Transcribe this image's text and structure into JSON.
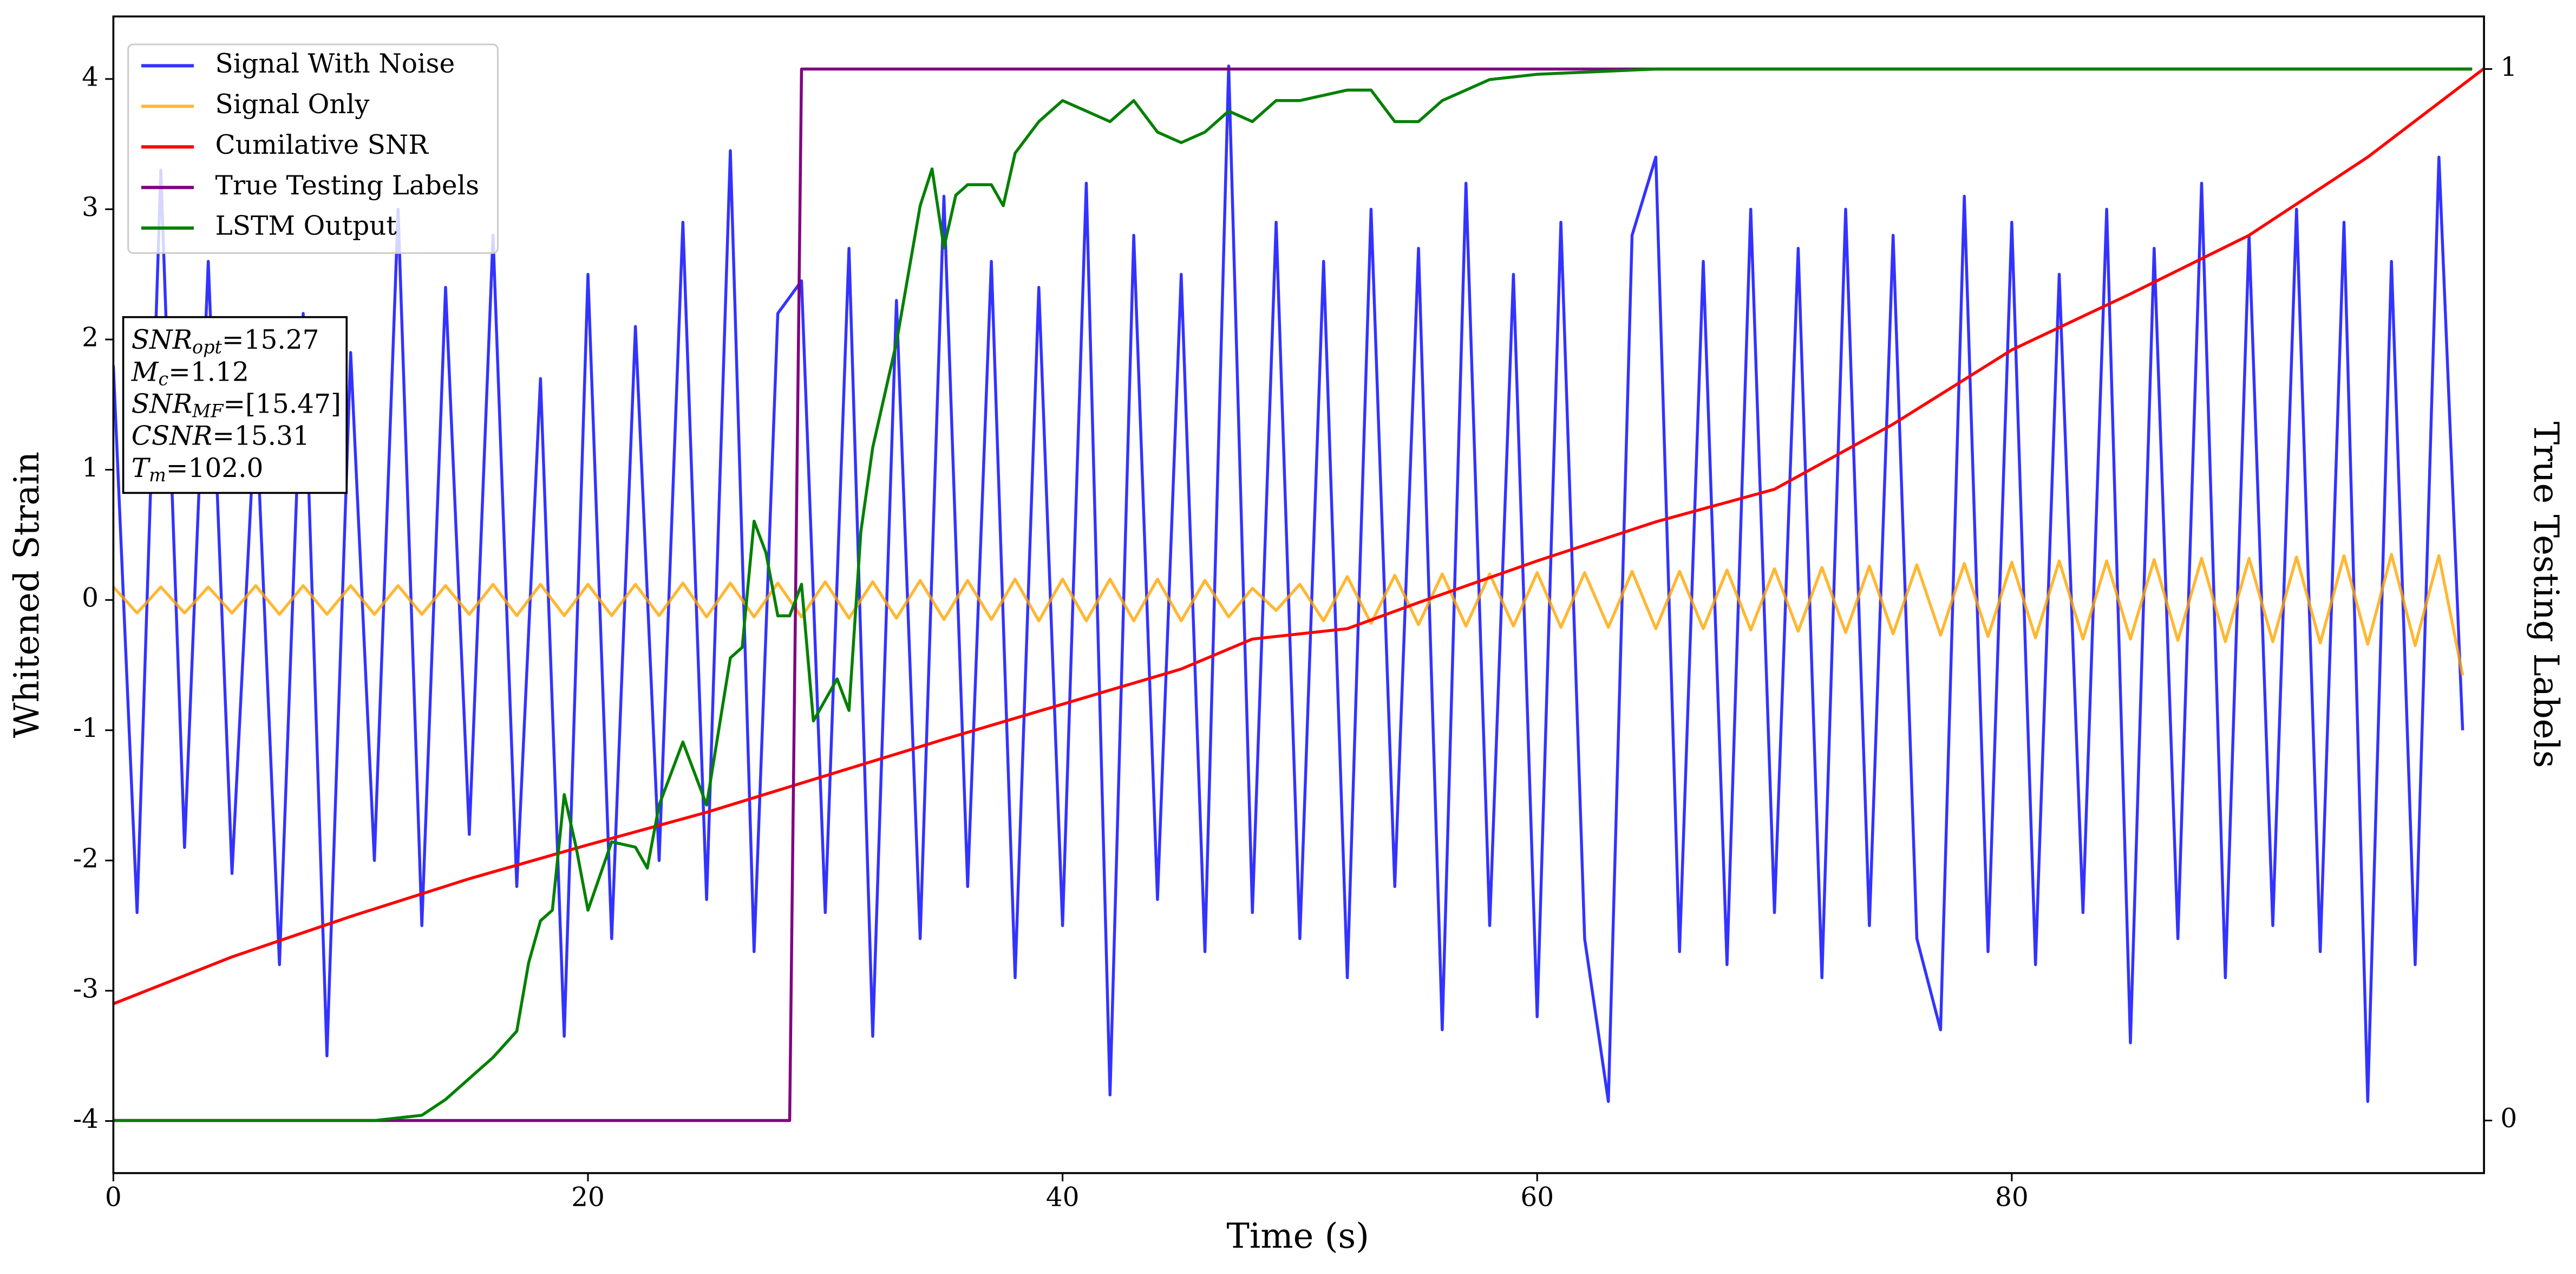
{
  "chart_data": {
    "type": "line",
    "xlabel": "Time (s)",
    "ylabel": "Whitened Strain",
    "y2label": "True Testing Labels",
    "xlim": [
      0,
      99.9
    ],
    "ylim": [
      -4.4,
      4.48
    ],
    "y2lim": [
      -0.05,
      1.05
    ],
    "xticks": [
      0,
      20,
      40,
      60,
      80
    ],
    "yticks": [
      -4,
      -3,
      -2,
      -1,
      0,
      1,
      2,
      3,
      4
    ],
    "y2ticks": [
      0,
      1
    ],
    "legend": "upper left",
    "grid": false,
    "x": [
      0,
      1,
      2,
      3,
      4,
      5,
      6,
      7,
      8,
      9,
      10,
      11,
      12,
      13,
      14,
      15,
      16,
      17,
      18,
      19,
      20,
      21,
      22,
      23,
      24,
      25,
      26,
      27,
      28,
      29,
      30,
      31,
      32,
      33,
      34,
      35,
      36,
      37,
      38,
      39,
      40,
      41,
      42,
      43,
      44,
      45,
      46,
      47,
      48,
      49,
      50,
      51,
      52,
      53,
      54,
      55,
      56,
      57,
      58,
      59,
      60,
      61,
      62,
      63,
      64,
      65,
      66,
      67,
      68,
      69,
      70,
      71,
      72,
      73,
      74,
      75,
      76,
      77,
      78,
      79,
      80,
      81,
      82,
      83,
      84,
      85,
      86,
      87,
      88,
      89,
      90,
      91,
      92,
      93,
      94,
      95,
      96,
      97,
      98,
      99
    ],
    "series": [
      {
        "name": "Signal With Noise",
        "color": "blue",
        "alpha": 0.8,
        "values": [
          1.8,
          -2.4,
          3.3,
          -1.9,
          2.6,
          -2.1,
          1.5,
          -2.8,
          2.2,
          -3.5,
          1.9,
          -2.0,
          3.0,
          -2.5,
          2.4,
          -1.8,
          2.8,
          -2.2,
          1.7,
          -3.35,
          2.5,
          -2.6,
          2.1,
          -2.0,
          2.9,
          -2.3,
          3.45,
          -2.7,
          2.2,
          2.45,
          -2.4,
          2.7,
          -3.35,
          2.3,
          -2.6,
          3.1,
          -2.2,
          2.6,
          -2.9,
          2.4,
          -2.5,
          3.2,
          -3.8,
          2.8,
          -2.3,
          2.5,
          -2.7,
          4.1,
          -2.4,
          2.9,
          -2.6,
          2.6,
          -2.9,
          3.0,
          -2.2,
          2.7,
          -3.3,
          3.2,
          -2.5,
          2.5,
          -3.2,
          2.9,
          -2.6,
          -3.85,
          2.8,
          3.4,
          -2.7,
          2.6,
          -2.8,
          3.0,
          -2.4,
          2.7,
          -2.9,
          3.0,
          -2.5,
          2.8,
          -2.6,
          -3.3,
          3.1,
          -2.7,
          2.9,
          -2.8,
          2.5,
          -2.4,
          3.0,
          -3.4,
          2.7,
          -2.6,
          3.2,
          -2.9,
          2.8,
          -2.5,
          3.0,
          -2.7,
          2.9,
          -3.85,
          2.6,
          -2.8,
          3.4,
          -1.0
        ]
      },
      {
        "name": "Signal Only",
        "color": "orange",
        "alpha": 0.8,
        "values": [
          0.1,
          -0.1,
          0.1,
          -0.1,
          0.1,
          -0.1,
          0.11,
          -0.11,
          0.11,
          -0.11,
          0.11,
          -0.11,
          0.11,
          -0.11,
          0.11,
          -0.11,
          0.12,
          -0.12,
          0.12,
          -0.12,
          0.12,
          -0.12,
          0.12,
          -0.12,
          0.13,
          -0.13,
          0.13,
          -0.13,
          0.13,
          -0.13,
          0.14,
          -0.14,
          0.14,
          -0.14,
          0.15,
          -0.15,
          0.15,
          -0.15,
          0.16,
          -0.16,
          0.16,
          -0.16,
          0.16,
          -0.16,
          0.16,
          -0.16,
          0.15,
          -0.13,
          0.09,
          -0.08,
          0.12,
          -0.16,
          0.18,
          -0.18,
          0.19,
          -0.19,
          0.2,
          -0.2,
          0.2,
          -0.2,
          0.21,
          -0.21,
          0.21,
          -0.21,
          0.22,
          -0.22,
          0.22,
          -0.22,
          0.23,
          -0.23,
          0.24,
          -0.24,
          0.25,
          -0.25,
          0.26,
          -0.26,
          0.27,
          -0.27,
          0.28,
          -0.28,
          0.29,
          -0.29,
          0.3,
          -0.3,
          0.3,
          -0.3,
          0.31,
          -0.31,
          0.32,
          -0.32,
          0.32,
          -0.32,
          0.33,
          -0.33,
          0.34,
          -0.34,
          0.35,
          -0.35,
          0.34,
          -0.58
        ]
      },
      {
        "name": "Cumilative SNR",
        "color": "red",
        "alpha": 1,
        "x": [
          0,
          5,
          10,
          15,
          20,
          25,
          30,
          35,
          40,
          45,
          48,
          52,
          55,
          60,
          65,
          70,
          75,
          80,
          85,
          90,
          95,
          99.9
        ],
        "values": [
          -3.1,
          -2.74,
          -2.43,
          -2.14,
          -1.88,
          -1.63,
          -1.35,
          -1.07,
          -0.8,
          -0.53,
          -0.3,
          -0.22,
          -0.02,
          0.3,
          0.6,
          0.85,
          1.35,
          1.92,
          2.35,
          2.8,
          3.4,
          4.08
        ]
      },
      {
        "name": "True Testing Labels",
        "color": "purple",
        "alpha": 1,
        "axis": "y2",
        "x": [
          0,
          28.5,
          29.0,
          99.4
        ],
        "values": [
          0,
          0,
          1,
          1
        ]
      },
      {
        "name": "LSTM Output",
        "color": "green",
        "alpha": 1,
        "axis": "y2",
        "x": [
          0,
          11,
          13,
          14,
          15,
          16,
          17,
          17.5,
          18,
          18.5,
          19,
          19.5,
          20,
          21,
          22,
          22.5,
          23,
          24,
          25,
          26,
          26.5,
          27,
          27.5,
          28,
          28.5,
          29,
          29.5,
          30,
          30.5,
          31,
          31.5,
          32,
          33,
          34,
          34.5,
          35,
          35.5,
          36,
          37,
          37.5,
          38,
          39,
          40,
          41,
          42,
          43,
          44,
          45,
          46,
          47,
          48,
          49,
          50,
          52,
          53,
          54,
          55,
          56,
          57,
          58,
          60,
          65,
          99.4
        ],
        "values": [
          0,
          0,
          0.005,
          0.02,
          0.04,
          0.06,
          0.085,
          0.15,
          0.19,
          0.2,
          0.31,
          0.26,
          0.2,
          0.265,
          0.26,
          0.24,
          0.3,
          0.36,
          0.3,
          0.44,
          0.45,
          0.57,
          0.54,
          0.48,
          0.48,
          0.51,
          0.38,
          0.4,
          0.42,
          0.39,
          0.56,
          0.64,
          0.74,
          0.87,
          0.905,
          0.83,
          0.88,
          0.89,
          0.89,
          0.87,
          0.92,
          0.95,
          0.97,
          0.96,
          0.95,
          0.97,
          0.94,
          0.93,
          0.94,
          0.96,
          0.95,
          0.97,
          0.97,
          0.98,
          0.98,
          0.95,
          0.95,
          0.97,
          0.98,
          0.99,
          0.995,
          1.0,
          1.0
        ]
      }
    ],
    "annotation": [
      {
        "symbol": "SNR",
        "subscript": "opt",
        "text": "=15.27"
      },
      {
        "symbol": "M",
        "subscript": "c",
        "text": "=1.12"
      },
      {
        "symbol": "SNR",
        "subscript": "MF",
        "text": "=[15.47]"
      },
      {
        "symbol": "CSNR",
        "subscript": "",
        "text": "=15.31"
      },
      {
        "symbol": "T",
        "subscript": "m",
        "text": "=102.0"
      }
    ]
  }
}
